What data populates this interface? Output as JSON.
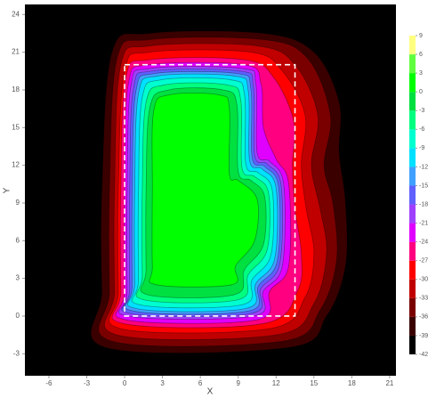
{
  "chart_data": {
    "type": "contour",
    "x_label": "X",
    "y_label": "Y",
    "xlim": [
      -7.9,
      21.5
    ],
    "ylim": [
      -4.75,
      24.8
    ],
    "xticks": [
      -6,
      -3,
      0,
      3,
      6,
      9,
      12,
      15,
      18,
      21
    ],
    "yticks": [
      -3,
      0,
      3,
      6,
      9,
      12,
      15,
      18,
      21,
      24
    ],
    "background": "#000000",
    "levels": [
      -42,
      -39,
      -36,
      -33,
      -30,
      -27,
      -24,
      -21,
      -18,
      -15,
      -12,
      -9,
      -6,
      -3,
      0,
      3,
      6,
      9
    ],
    "colors": [
      "#000000",
      "#3a0000",
      "#7a0000",
      "#c00000",
      "#ff0000",
      "#ff0080",
      "#e000ff",
      "#a040ff",
      "#6060ff",
      "#40a0ff",
      "#00e0ff",
      "#00ffd0",
      "#00ff80",
      "#00e040",
      "#00ff00",
      "#60ff40",
      "#ffff80"
    ],
    "regions": [
      {
        "level": -39,
        "x": [
          -1.5,
          13,
          16,
          17.5,
          17.5,
          17,
          17,
          15,
          11,
          2,
          -1,
          -1.8,
          -1.8
        ],
        "y": [
          -2.5,
          -2.5,
          0,
          4,
          9,
          13,
          17,
          21,
          22.5,
          22.5,
          21,
          10,
          2
        ]
      },
      {
        "level": -36,
        "x": [
          -1,
          12.5,
          15.5,
          16.8,
          16.5,
          15.8,
          16.3,
          14.5,
          11,
          2,
          -0.6,
          -1.2,
          -1.2
        ],
        "y": [
          -2,
          -2,
          0.5,
          4.5,
          9,
          12,
          16,
          20.5,
          22,
          22,
          20.5,
          10,
          2
        ]
      },
      {
        "level": -33,
        "x": [
          -0.6,
          12,
          15,
          16,
          15.5,
          14.8,
          15.3,
          13.5,
          10.5,
          2,
          -0.3,
          -0.8,
          -0.8
        ],
        "y": [
          -1.5,
          -1.5,
          1,
          5,
          8.5,
          12,
          16,
          20,
          21.5,
          21.5,
          20,
          10,
          2
        ]
      },
      {
        "level": -30,
        "x": [
          -0.3,
          11.5,
          14.3,
          15,
          14.4,
          14,
          14.3,
          12.5,
          10,
          2,
          0,
          -0.5,
          -0.5
        ],
        "y": [
          -1,
          -1,
          1.5,
          5,
          8.5,
          12,
          16,
          19.5,
          21,
          21,
          19.5,
          10,
          2
        ]
      },
      {
        "level": -27,
        "x": [
          -0.1,
          11,
          13.7,
          14,
          13.5,
          13.3,
          13.4,
          11.8,
          9.5,
          2,
          0.1,
          -0.3,
          -0.3
        ],
        "y": [
          -0.6,
          -0.6,
          2,
          5,
          8.5,
          12,
          15.5,
          19,
          20.4,
          20.4,
          19,
          10,
          2
        ]
      },
      {
        "level": -24,
        "x": [
          0.1,
          10.5,
          11.5,
          13,
          13,
          12,
          11,
          10.8,
          9.5,
          2,
          0.3,
          0,
          0
        ],
        "y": [
          -0.3,
          -0.3,
          2,
          4,
          10.5,
          12.5,
          15,
          18.5,
          20,
          20,
          18.5,
          10,
          2
        ]
      },
      {
        "level": -21,
        "x": [
          0.3,
          10.2,
          11,
          12.5,
          12.6,
          11.5,
          10.5,
          10.4,
          9.3,
          2,
          0.5,
          0.2,
          0.2
        ],
        "y": [
          0,
          0,
          2,
          4,
          10.5,
          12.3,
          13,
          18.5,
          19.7,
          19.7,
          18.3,
          10,
          2
        ]
      },
      {
        "level": -18,
        "x": [
          0.5,
          10,
          10.8,
          12.3,
          12.4,
          11.3,
          10.3,
          10.2,
          9.1,
          2.2,
          0.7,
          0.4,
          0.4
        ],
        "y": [
          0.2,
          0.2,
          2.2,
          4.2,
          10.4,
          12.1,
          12.8,
          18.3,
          19.5,
          19.5,
          18.1,
          10,
          2.2
        ]
      },
      {
        "level": -15,
        "x": [
          0.7,
          9.8,
          10.6,
          12.1,
          12.2,
          11.1,
          10.1,
          10,
          8.9,
          2.4,
          0.9,
          0.6,
          0.6
        ],
        "y": [
          0.4,
          0.4,
          2.4,
          4.4,
          10.3,
          11.9,
          12.6,
          18.1,
          19.3,
          19.3,
          17.9,
          10,
          2.4
        ]
      },
      {
        "level": -12,
        "x": [
          0.9,
          9.6,
          10.4,
          11.9,
          12,
          10.9,
          9.9,
          9.8,
          8.7,
          2.6,
          1.1,
          0.8,
          0.8
        ],
        "y": [
          0.6,
          0.6,
          2.6,
          4.6,
          10.2,
          11.7,
          12.4,
          17.9,
          19.1,
          19.1,
          17.7,
          10,
          2.6
        ]
      },
      {
        "level": -9,
        "x": [
          1.2,
          9.3,
          10.1,
          11.6,
          11.7,
          10.6,
          9.6,
          9.5,
          8.4,
          2.9,
          1.4,
          1.1,
          1.1
        ],
        "y": [
          0.9,
          0.9,
          2.9,
          4.9,
          10,
          11.4,
          12.1,
          17.6,
          18.8,
          18.8,
          17.4,
          10,
          2.9
        ]
      },
      {
        "level": -6,
        "x": [
          1.5,
          9,
          9.8,
          11.3,
          11.4,
          10.3,
          9.3,
          9.2,
          8.1,
          3.2,
          1.7,
          1.4,
          1.4
        ],
        "y": [
          1.3,
          1.3,
          3.3,
          5.3,
          9.8,
          11.1,
          11.8,
          17.2,
          18.4,
          18.4,
          17,
          10,
          3.3
        ]
      },
      {
        "level": -3,
        "x": [
          1.8,
          8.7,
          9.5,
          11,
          11.1,
          10,
          9,
          8.9,
          7.8,
          3.5,
          2,
          1.7,
          1.7
        ],
        "y": [
          1.7,
          1.7,
          3.7,
          5.7,
          9.5,
          10.8,
          11.5,
          16.8,
          18,
          18,
          16.6,
          10,
          3.7
        ]
      },
      {
        "level": 0,
        "x": [
          2.5,
          8.5,
          8.8,
          10.3,
          10.5,
          9,
          8.3,
          8.3,
          7.5,
          3.5,
          2.3,
          2.2,
          2.2
        ],
        "y": [
          2.5,
          2.5,
          4,
          6,
          9.3,
          10.8,
          11.3,
          16.5,
          17.6,
          17.6,
          16.3,
          10,
          4
        ]
      }
    ],
    "boundary": {
      "x": [
        0,
        13.5
      ],
      "y": [
        0,
        20
      ],
      "color": "#ffffff"
    }
  }
}
